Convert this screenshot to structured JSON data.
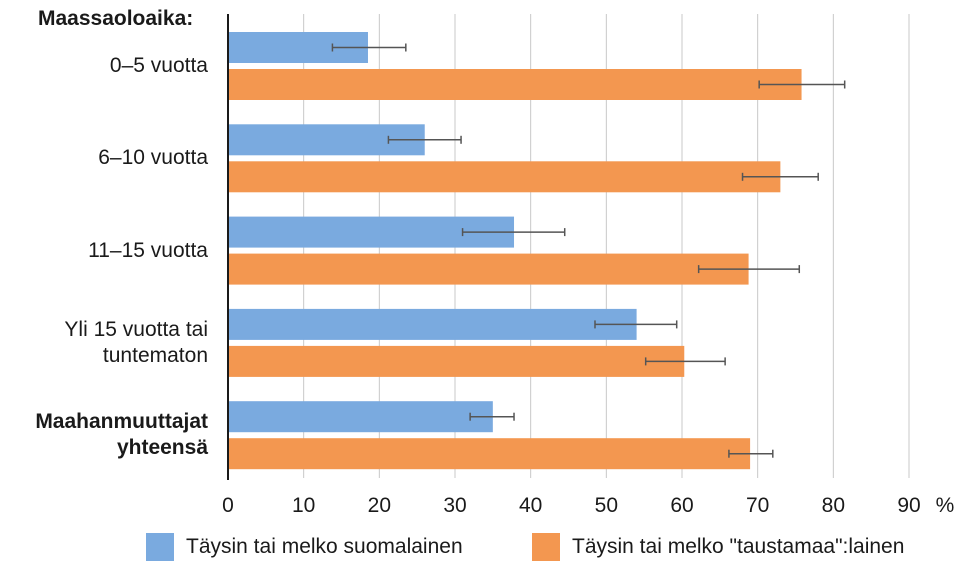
{
  "chart_data": {
    "type": "bar",
    "orientation": "horizontal",
    "header": "Maassaoloaika:",
    "categories": [
      {
        "label": [
          "0–5 vuotta"
        ],
        "bold": false
      },
      {
        "label": [
          "6–10 vuotta"
        ],
        "bold": false
      },
      {
        "label": [
          "11–15 vuotta"
        ],
        "bold": false
      },
      {
        "label": [
          "Yli 15 vuotta tai",
          "tuntematon"
        ],
        "bold": false
      },
      {
        "label": [
          "Maahanmuuttajat",
          "yhteensä"
        ],
        "bold": true
      }
    ],
    "series": [
      {
        "name": "Täysin tai melko suomalainen",
        "color": "#7aaadf",
        "values": [
          18.5,
          26,
          37.8,
          54,
          35
        ],
        "error_low": [
          13.8,
          21.2,
          31,
          48.5,
          32
        ],
        "error_high": [
          23.5,
          30.8,
          44.5,
          59.3,
          37.8
        ]
      },
      {
        "name": "Täysin tai melko \"taustamaa\":lainen",
        "color": "#f39750",
        "values": [
          75.8,
          73,
          68.8,
          60.3,
          69
        ],
        "error_low": [
          70.2,
          68,
          62.2,
          55.2,
          66.2
        ],
        "error_high": [
          81.5,
          78,
          75.5,
          65.7,
          72
        ]
      }
    ],
    "xaxis": {
      "ticks": [
        0,
        10,
        20,
        30,
        40,
        50,
        60,
        70,
        80,
        90
      ],
      "xlim": [
        0,
        90
      ],
      "unit": "%"
    },
    "grid": true,
    "legend_position": "bottom"
  }
}
